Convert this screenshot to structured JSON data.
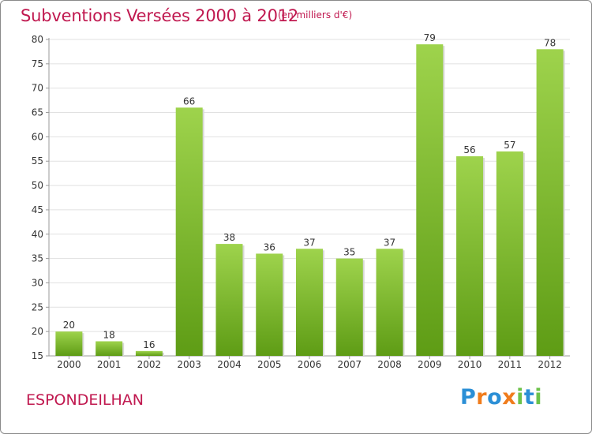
{
  "title": "Subventions Versées 2000 à 2012",
  "subtitle": "(en milliers d'€)",
  "commune": "ESPONDEILHAN",
  "logo": {
    "text": "Proxiti",
    "letters": [
      "P",
      "r",
      "o",
      "x",
      "i",
      "t",
      "i"
    ],
    "colors": [
      "#2b8fd6",
      "#f07c1c",
      "#2b8fd6",
      "#f07c1c",
      "#6cc24a",
      "#2b8fd6",
      "#6cc24a"
    ]
  },
  "colors": {
    "title": "#c0184f",
    "bar_light": "#9ed34c",
    "bar_dark": "#5e9c15",
    "grid": "#e1e1e1",
    "axis": "#999999"
  },
  "chart_data": {
    "type": "bar",
    "categories": [
      "2000",
      "2001",
      "2002",
      "2003",
      "2004",
      "2005",
      "2006",
      "2007",
      "2008",
      "2009",
      "2010",
      "2011",
      "2012"
    ],
    "values": [
      20,
      18,
      16,
      66,
      38,
      36,
      37,
      35,
      37,
      79,
      56,
      57,
      78
    ],
    "ylim": [
      15,
      80
    ],
    "yticks": [
      15,
      20,
      25,
      30,
      35,
      40,
      45,
      50,
      55,
      60,
      65,
      70,
      75,
      80
    ],
    "grid": true,
    "value_labels": true
  }
}
